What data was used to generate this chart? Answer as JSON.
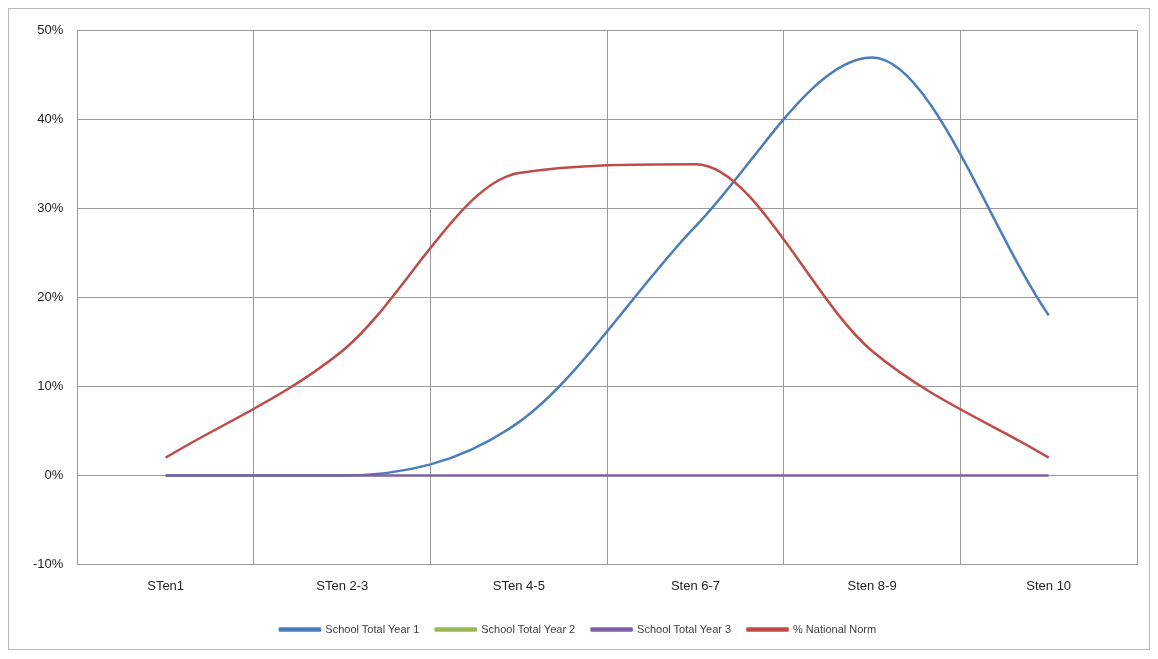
{
  "chart_data": {
    "type": "line",
    "categories": [
      "STen1",
      "STen 2-3",
      "STen 4-5",
      "Sten 6-7",
      "Sten 8-9",
      "Sten 10"
    ],
    "series": [
      {
        "name": "School Total Year 1",
        "color": "#4a7ebb",
        "values": [
          0,
          0,
          6,
          28,
          47,
          18
        ]
      },
      {
        "name": "School Total Year 2",
        "color": "#98b954",
        "values": [
          null,
          null,
          null,
          null,
          null,
          null
        ]
      },
      {
        "name": "School Total Year 3",
        "color": "#7d60a0",
        "values": [
          0,
          0,
          0,
          0,
          0,
          0
        ]
      },
      {
        "name": "% National Norm",
        "color": "#be4b48",
        "values": [
          2,
          14,
          34,
          35,
          14,
          2
        ]
      }
    ],
    "ylim": [
      -10,
      50
    ],
    "yticks": [
      {
        "value": -10,
        "label": "-10%"
      },
      {
        "value": 0,
        "label": "0%"
      },
      {
        "value": 10,
        "label": "10%"
      },
      {
        "value": 20,
        "label": "20%"
      },
      {
        "value": 30,
        "label": "30%"
      },
      {
        "value": 40,
        "label": "40%"
      },
      {
        "value": 50,
        "label": "50%"
      }
    ],
    "grid": true,
    "legend": "bottom",
    "marker": "none",
    "line_style": "solid"
  }
}
